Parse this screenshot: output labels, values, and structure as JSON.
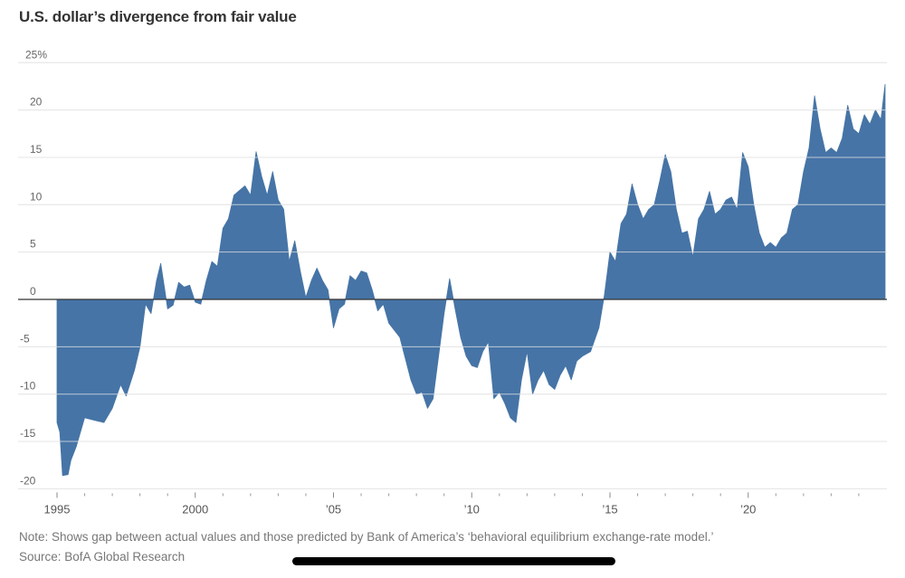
{
  "chart_data": {
    "type": "area",
    "title": "U.S. dollar’s divergence from fair value",
    "xlabel": "",
    "ylabel": "",
    "y_unit": "%",
    "ylim": [
      -20,
      25
    ],
    "xlim": [
      1995,
      2025
    ],
    "grid": true,
    "legend": "none",
    "fill_color": "#4674a6",
    "y_ticks": [
      {
        "value": 25,
        "label": "25%"
      },
      {
        "value": 20,
        "label": "20"
      },
      {
        "value": 15,
        "label": "15"
      },
      {
        "value": 10,
        "label": "10"
      },
      {
        "value": 5,
        "label": "5"
      },
      {
        "value": 0,
        "label": "0"
      },
      {
        "value": -5,
        "label": "-5"
      },
      {
        "value": -10,
        "label": "-10"
      },
      {
        "value": -15,
        "label": "-15"
      },
      {
        "value": -20,
        "label": "-20"
      }
    ],
    "x_ticks": [
      {
        "value": 1995,
        "label": "1995"
      },
      {
        "value": 2000,
        "label": "2000"
      },
      {
        "value": 2005,
        "label": "’05"
      },
      {
        "value": 2010,
        "label": "’10"
      },
      {
        "value": 2015,
        "label": "’15"
      },
      {
        "value": 2020,
        "label": "’20"
      }
    ],
    "minor_x_ticks": [
      1996,
      1997,
      1998,
      1999,
      2001,
      2002,
      2003,
      2004,
      2006,
      2007,
      2008,
      2009,
      2011,
      2012,
      2013,
      2014,
      2016,
      2017,
      2018,
      2019,
      2021,
      2022,
      2023,
      2024
    ],
    "series": [
      {
        "name": "Divergence from fair value",
        "x": [
          1995.0,
          1995.1,
          1995.2,
          1995.4,
          1995.5,
          1995.7,
          1996.0,
          1996.4,
          1996.7,
          1997.0,
          1997.3,
          1997.5,
          1997.8,
          1998.0,
          1998.2,
          1998.4,
          1998.6,
          1998.75,
          1998.9,
          1999.0,
          1999.2,
          1999.4,
          1999.6,
          1999.8,
          2000.0,
          2000.2,
          2000.4,
          2000.6,
          2000.8,
          2001.0,
          2001.2,
          2001.4,
          2001.6,
          2001.8,
          2002.0,
          2002.2,
          2002.4,
          2002.6,
          2002.8,
          2003.0,
          2003.2,
          2003.4,
          2003.6,
          2003.8,
          2004.0,
          2004.2,
          2004.4,
          2004.6,
          2004.8,
          2005.0,
          2005.2,
          2005.4,
          2005.6,
          2005.8,
          2006.0,
          2006.2,
          2006.4,
          2006.6,
          2006.8,
          2007.0,
          2007.4,
          2007.8,
          2008.0,
          2008.2,
          2008.4,
          2008.6,
          2008.8,
          2009.0,
          2009.2,
          2009.4,
          2009.6,
          2009.8,
          2010.0,
          2010.2,
          2010.4,
          2010.6,
          2010.8,
          2011.0,
          2011.2,
          2011.4,
          2011.6,
          2011.8,
          2012.0,
          2012.2,
          2012.4,
          2012.6,
          2012.8,
          2013.0,
          2013.2,
          2013.4,
          2013.6,
          2013.8,
          2014.0,
          2014.3,
          2014.6,
          2014.8,
          2015.0,
          2015.2,
          2015.4,
          2015.6,
          2015.8,
          2016.0,
          2016.2,
          2016.4,
          2016.6,
          2016.8,
          2017.0,
          2017.2,
          2017.4,
          2017.6,
          2017.8,
          2018.0,
          2018.2,
          2018.4,
          2018.6,
          2018.8,
          2019.0,
          2019.2,
          2019.4,
          2019.6,
          2019.8,
          2020.0,
          2020.2,
          2020.4,
          2020.6,
          2020.8,
          2021.0,
          2021.2,
          2021.4,
          2021.6,
          2021.8,
          2022.0,
          2022.2,
          2022.4,
          2022.6,
          2022.8,
          2023.0,
          2023.2,
          2023.4,
          2023.6,
          2023.8,
          2024.0,
          2024.2,
          2024.4,
          2024.6,
          2024.8,
          2024.95
        ],
        "values": [
          -13,
          -14,
          -18.6,
          -18.5,
          -17,
          -15.5,
          -12.5,
          -12.8,
          -13,
          -11.5,
          -9,
          -10.2,
          -7.5,
          -5,
          -0.5,
          -1.5,
          2,
          3.8,
          1,
          -1,
          -0.6,
          1.8,
          1.3,
          1.5,
          -0.3,
          -0.5,
          2,
          4,
          3.5,
          7.5,
          8.5,
          11,
          11.5,
          12,
          11,
          15.6,
          13,
          11,
          13.5,
          10.5,
          9.5,
          4,
          6.2,
          3,
          0.2,
          2,
          3.3,
          2,
          1,
          -3,
          -1,
          -0.5,
          2.5,
          2,
          3,
          2.8,
          1,
          -1.2,
          -0.5,
          -2.5,
          -4,
          -8.5,
          -10,
          -9.8,
          -11.5,
          -10.5,
          -6,
          -1.5,
          2.2,
          -1,
          -4,
          -6,
          -7,
          -7.2,
          -5.5,
          -4.5,
          -10.5,
          -9.8,
          -11,
          -12.5,
          -13,
          -8.5,
          -5.5,
          -10,
          -8.5,
          -7.5,
          -9,
          -9.5,
          -8,
          -7,
          -8.5,
          -6.5,
          -6,
          -5.5,
          -3,
          0.5,
          5,
          4,
          8,
          9,
          12.2,
          10,
          8.5,
          9.5,
          10,
          12.5,
          15.3,
          13.5,
          9.5,
          7,
          7.2,
          4.5,
          8.5,
          9.5,
          11.4,
          9,
          9.5,
          10.5,
          10.8,
          9.5,
          15.5,
          14,
          10,
          7,
          5.5,
          6,
          5.5,
          6.5,
          7,
          9.5,
          10,
          13.5,
          16,
          21.5,
          18,
          15.5,
          16,
          15.5,
          17,
          20.5,
          18,
          17.5,
          19.5,
          18.5,
          20,
          19,
          22.7
        ]
      }
    ]
  },
  "footer": {
    "note": "Note: Shows gap between actual values and those predicted by Bank of America’s ‘behavioral equilibrium exchange-rate model.’",
    "source": "Source: BofA Global Research"
  }
}
